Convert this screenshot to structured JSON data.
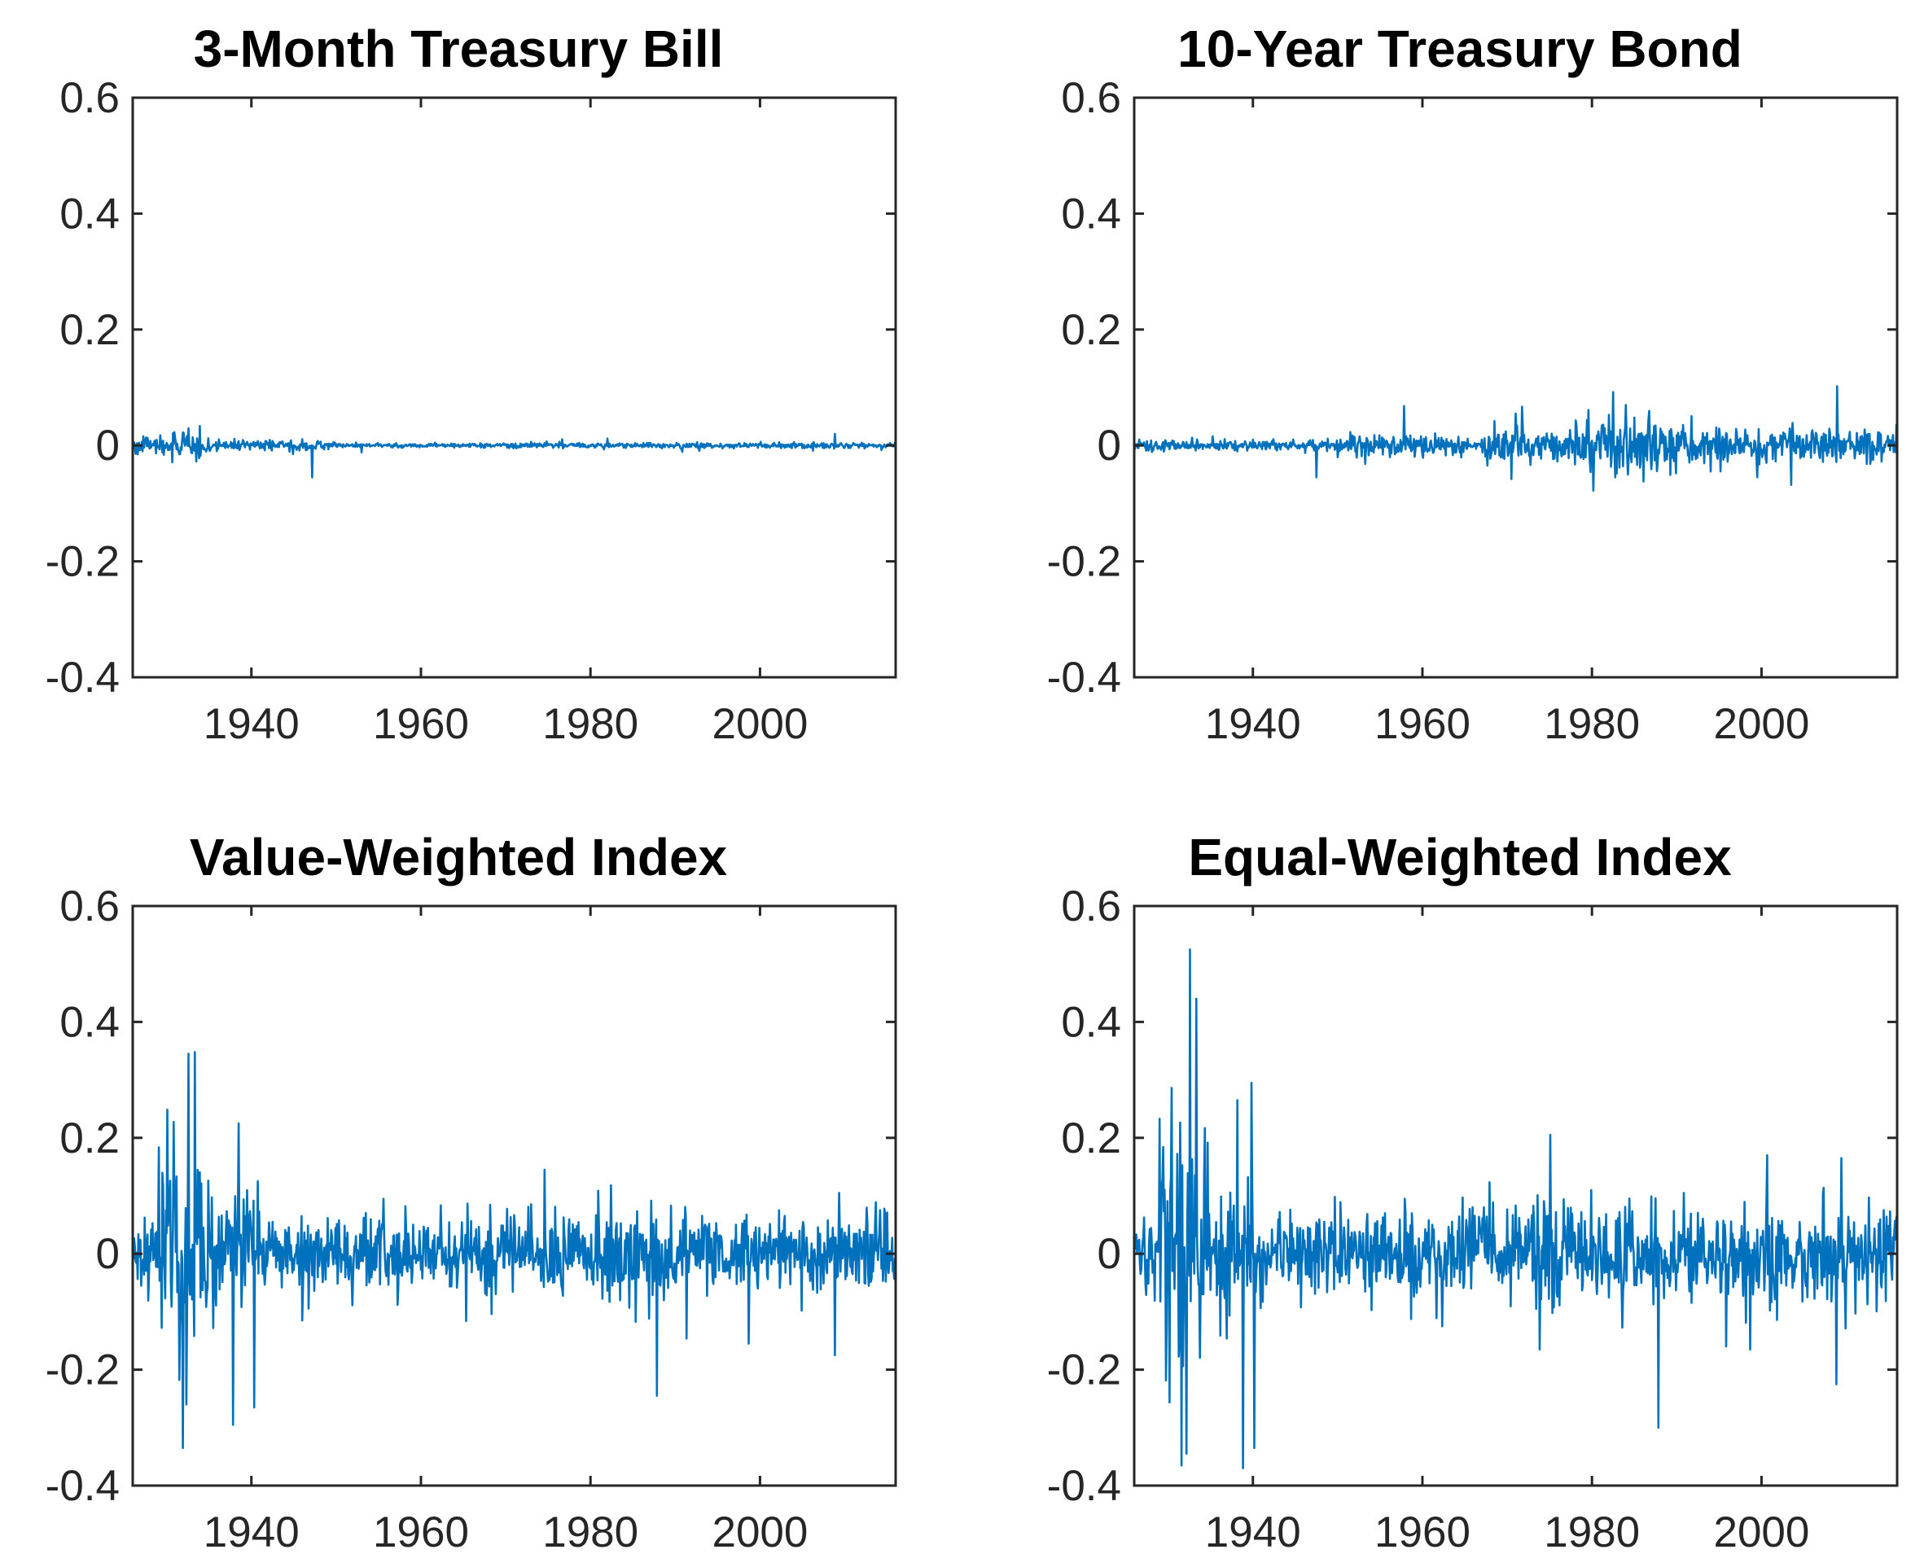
{
  "colors": {
    "series": "#0072BD",
    "axes": "#262626",
    "text": "#000000",
    "background": "#ffffff"
  },
  "chart_data": [
    {
      "type": "line",
      "title": "3-Month Treasury Bill",
      "xlabel": "",
      "ylabel": "",
      "xlim": [
        1926,
        2016
      ],
      "ylim": [
        -0.4,
        0.6
      ],
      "xticks": [
        1940,
        1960,
        1980,
        2000
      ],
      "yticks": [
        -0.4,
        -0.2,
        0,
        0.2,
        0.4,
        0.6
      ],
      "ytick_labels": [
        "-0.4",
        "-0.2",
        "0",
        "0.2",
        "0.4",
        "0.6"
      ],
      "grid": false,
      "series": [
        {
          "name": "3-Month Treasury Bill",
          "color": "#0072BD",
          "style": "noise",
          "segments": [
            [
              1926,
              1929,
              0.008
            ],
            [
              1929,
              1934,
              0.012
            ],
            [
              1934,
              1938,
              0.006
            ],
            [
              1938,
              1950,
              0.005
            ],
            [
              1950,
              1970,
              0.002
            ],
            [
              1970,
              1990,
              0.003
            ],
            [
              1990,
              2016,
              0.003
            ]
          ],
          "extremes": [
            [
              1933.5,
              -0.028
            ],
            [
              1947.2,
              -0.055
            ],
            [
              1932.0,
              0.022
            ],
            [
              2008.8,
              0.02
            ],
            [
              1982.0,
              0.012
            ],
            [
              1953.0,
              -0.012
            ]
          ]
        }
      ]
    },
    {
      "type": "line",
      "title": "10-Year Treasury Bond",
      "xlabel": "",
      "ylabel": "",
      "xlim": [
        1926,
        2016
      ],
      "ylim": [
        -0.4,
        0.6
      ],
      "xticks": [
        1940,
        1960,
        1980,
        2000
      ],
      "yticks": [
        -0.4,
        -0.2,
        0,
        0.2,
        0.4,
        0.6
      ],
      "ytick_labels": [
        "-0.4",
        "-0.2",
        "0",
        "0.2",
        "0.4",
        "0.6"
      ],
      "grid": false,
      "series": [
        {
          "name": "10-Year Treasury Bond",
          "color": "#0072BD",
          "style": "noise",
          "segments": [
            [
              1926,
              1940,
              0.006
            ],
            [
              1940,
              1950,
              0.005
            ],
            [
              1950,
              1965,
              0.011
            ],
            [
              1965,
              1967,
              0.004
            ],
            [
              1967,
              1978,
              0.018
            ],
            [
              1978,
              1990,
              0.026
            ],
            [
              1990,
              2016,
              0.018
            ]
          ],
          "extremes": [
            [
              1957.8,
              0.068
            ],
            [
              1947.5,
              -0.055
            ],
            [
              1970.5,
              -0.058
            ],
            [
              1971.0,
              0.055
            ],
            [
              1980.2,
              -0.078
            ],
            [
              1982.5,
              0.092
            ],
            [
              1984.0,
              0.07
            ],
            [
              2008.9,
              0.102
            ],
            [
              2003.5,
              -0.068
            ],
            [
              1999.5,
              -0.055
            ],
            [
              1994.0,
              -0.045
            ]
          ]
        }
      ]
    },
    {
      "type": "line",
      "title": "Value-Weighted Index",
      "xlabel": "",
      "ylabel": "",
      "xlim": [
        1926,
        2016
      ],
      "ylim": [
        -0.4,
        0.6
      ],
      "xticks": [
        1940,
        1960,
        1980,
        2000
      ],
      "yticks": [
        -0.4,
        -0.2,
        0,
        0.2,
        0.4,
        0.6
      ],
      "ytick_labels": [
        "-0.4",
        "-0.2",
        "0",
        "0.2",
        "0.4",
        "0.6"
      ],
      "grid": false,
      "series": [
        {
          "name": "Value-Weighted Index",
          "color": "#0072BD",
          "style": "noise",
          "segments": [
            [
              1926,
              1929,
              0.035
            ],
            [
              1929,
              1935,
              0.095
            ],
            [
              1935,
              1941,
              0.06
            ],
            [
              1941,
              1955,
              0.035
            ],
            [
              1955,
              1973,
              0.035
            ],
            [
              1973,
              1990,
              0.045
            ],
            [
              1990,
              2001,
              0.038
            ],
            [
              2001,
              2016,
              0.04
            ]
          ],
          "extremes": [
            [
              1932.6,
              0.345
            ],
            [
              1933.3,
              0.348
            ],
            [
              1931.9,
              -0.335
            ],
            [
              1932.3,
              -0.26
            ],
            [
              1938.5,
              0.225
            ],
            [
              1937.8,
              -0.295
            ],
            [
              1940.3,
              -0.265
            ],
            [
              1987.8,
              -0.245
            ],
            [
              1974.6,
              0.145
            ],
            [
              2008.8,
              -0.175
            ],
            [
              1998.7,
              -0.155
            ],
            [
              2009.3,
              0.105
            ],
            [
              1946.0,
              -0.115
            ]
          ]
        }
      ]
    },
    {
      "type": "line",
      "title": "Equal-Weighted Index",
      "xlabel": "",
      "ylabel": "",
      "xlim": [
        1926,
        2016
      ],
      "ylim": [
        -0.4,
        0.6
      ],
      "xticks": [
        1940,
        1960,
        1980,
        2000
      ],
      "yticks": [
        -0.4,
        -0.2,
        0,
        0.2,
        0.4,
        0.6
      ],
      "ytick_labels": [
        "-0.4",
        "-0.2",
        "0",
        "0.2",
        "0.4",
        "0.6"
      ],
      "grid": false,
      "series": [
        {
          "name": "Equal-Weighted Index",
          "color": "#0072BD",
          "style": "noise",
          "segments": [
            [
              1926,
              1929,
              0.04
            ],
            [
              1929,
              1935,
              0.115
            ],
            [
              1935,
              1941,
              0.07
            ],
            [
              1941,
              1955,
              0.04
            ],
            [
              1955,
              1973,
              0.045
            ],
            [
              1973,
              1990,
              0.05
            ],
            [
              1990,
              2001,
              0.045
            ],
            [
              2001,
              2016,
              0.045
            ]
          ],
          "extremes": [
            [
              1932.6,
              0.525
            ],
            [
              1933.3,
              0.44
            ],
            [
              1931.6,
              -0.365
            ],
            [
              1932.2,
              -0.345
            ],
            [
              1938.2,
              0.265
            ],
            [
              1939.8,
              0.295
            ],
            [
              1938.8,
              -0.37
            ],
            [
              1940.2,
              -0.335
            ],
            [
              1975.1,
              0.205
            ],
            [
              1987.8,
              -0.3
            ],
            [
              2009.4,
              0.165
            ],
            [
              2008.8,
              -0.225
            ],
            [
              1998.7,
              -0.165
            ],
            [
              1962.3,
              -0.125
            ],
            [
              1973.8,
              -0.165
            ]
          ]
        }
      ]
    }
  ]
}
